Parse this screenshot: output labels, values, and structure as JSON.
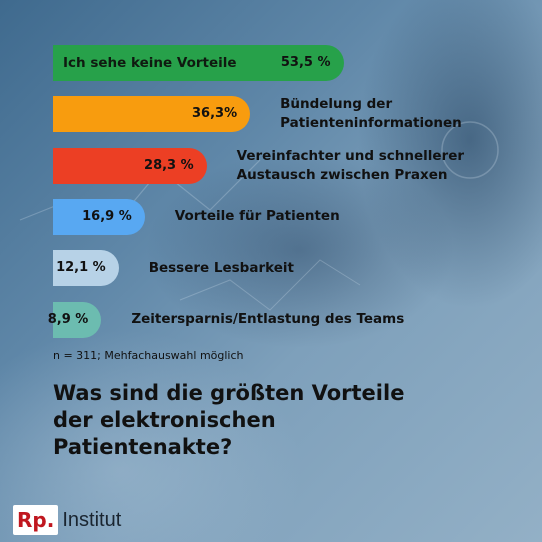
{
  "chart_data": {
    "type": "bar",
    "orientation": "horizontal",
    "title": "Was sind die größten Vorteile\nder elektronischen\nPatientenakte?",
    "note": "n = 311; Mehfachauswahl möglich",
    "categories": [
      "Ich sehe keine Vorteile",
      "Bündelung der\nPatienteninformationen",
      "Vereinfachter und schnellerer\nAustausch zwischen Praxen",
      "Vorteile für Patienten",
      "Bessere Lesbarkeit",
      "Zeitersparnis/Entlastung des Teams"
    ],
    "values": [
      53.5,
      36.3,
      28.3,
      16.9,
      12.1,
      8.9
    ],
    "value_labels": [
      "53,5 %",
      "36,3%",
      "28,3 %",
      "16,9 %",
      "12,1 %",
      "8,9 %"
    ],
    "colors": [
      "#27a14a",
      "#f89c0e",
      "#ec3f24",
      "#58a8f2",
      "#b7d2e7",
      "#6cbcb0"
    ],
    "xlim": [
      0,
      100
    ],
    "grid": false,
    "legend": "none"
  },
  "brand": {
    "mark": "Rp.",
    "name": "Institut",
    "mark_color": "#c0171f"
  }
}
